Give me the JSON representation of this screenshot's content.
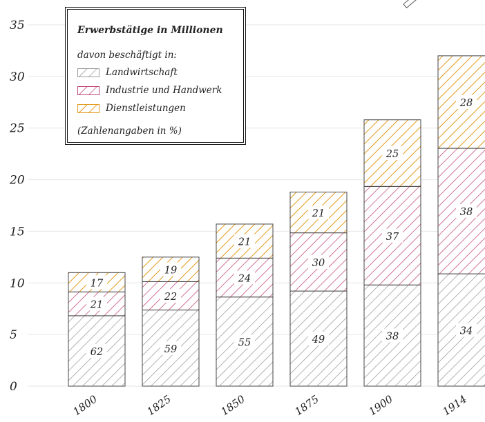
{
  "chart_data": {
    "type": "bar",
    "stacked": true,
    "title": "Erwerbstätige in Millionen",
    "subtitle": "davon beschäftigt in:",
    "note": "(Zahlenangaben in %)",
    "categories": [
      "1800",
      "1825",
      "1850",
      "1875",
      "1900",
      "1914"
    ],
    "totals": [
      11.0,
      12.5,
      15.7,
      18.8,
      25.8,
      32.0
    ],
    "series": [
      {
        "name": "Landwirtschaft",
        "percent": [
          62,
          59,
          55,
          49,
          38,
          34
        ],
        "color": "#9a9a9a"
      },
      {
        "name": "Industrie und Handwerk",
        "percent": [
          21,
          22,
          24,
          30,
          37,
          38
        ],
        "color": "#c2457a"
      },
      {
        "name": "Dienstleistungen",
        "percent": [
          17,
          19,
          21,
          21,
          25,
          28
        ],
        "color": "#e39a1c"
      }
    ],
    "ylim": [
      0,
      35
    ],
    "yticks": [
      "0",
      "5",
      "10",
      "15",
      "20",
      "25",
      "30",
      "35"
    ],
    "grid": true,
    "legend_position": "top-left"
  }
}
